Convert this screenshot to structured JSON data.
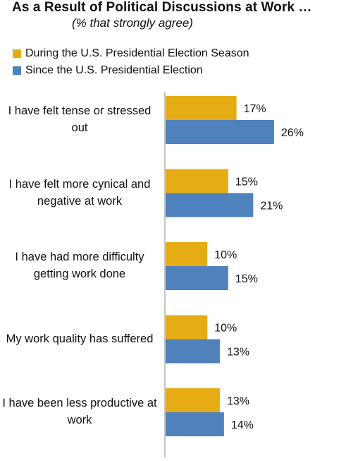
{
  "colors": {
    "during": "#E6AC14",
    "since": "#4F81BD",
    "axis": "#8C8C8C"
  },
  "chart_data": {
    "type": "bar",
    "orientation": "horizontal",
    "title": "As a Result of Political  Discussions at Work …",
    "subtitle": "(% that strongly agree)",
    "categories": [
      "I have felt tense or stressed out",
      "I have felt more cynical and negative at work",
      "I have had more difficulty getting work done",
      "My work quality has suffered",
      "I have been less productive at work"
    ],
    "series": [
      {
        "name": "During the U.S. Presidential Election Season",
        "values": [
          17,
          15,
          10,
          10,
          13
        ],
        "labels": [
          "17%",
          "15%",
          "10%",
          "10%",
          "13%"
        ]
      },
      {
        "name": "Since the U.S. Presidential Election",
        "values": [
          26,
          21,
          15,
          13,
          14
        ],
        "labels": [
          "26%",
          "21%",
          "15%",
          "13%",
          "14%"
        ]
      }
    ],
    "xlim": [
      0,
      30
    ],
    "grid": false,
    "legend_position": "top-left"
  }
}
